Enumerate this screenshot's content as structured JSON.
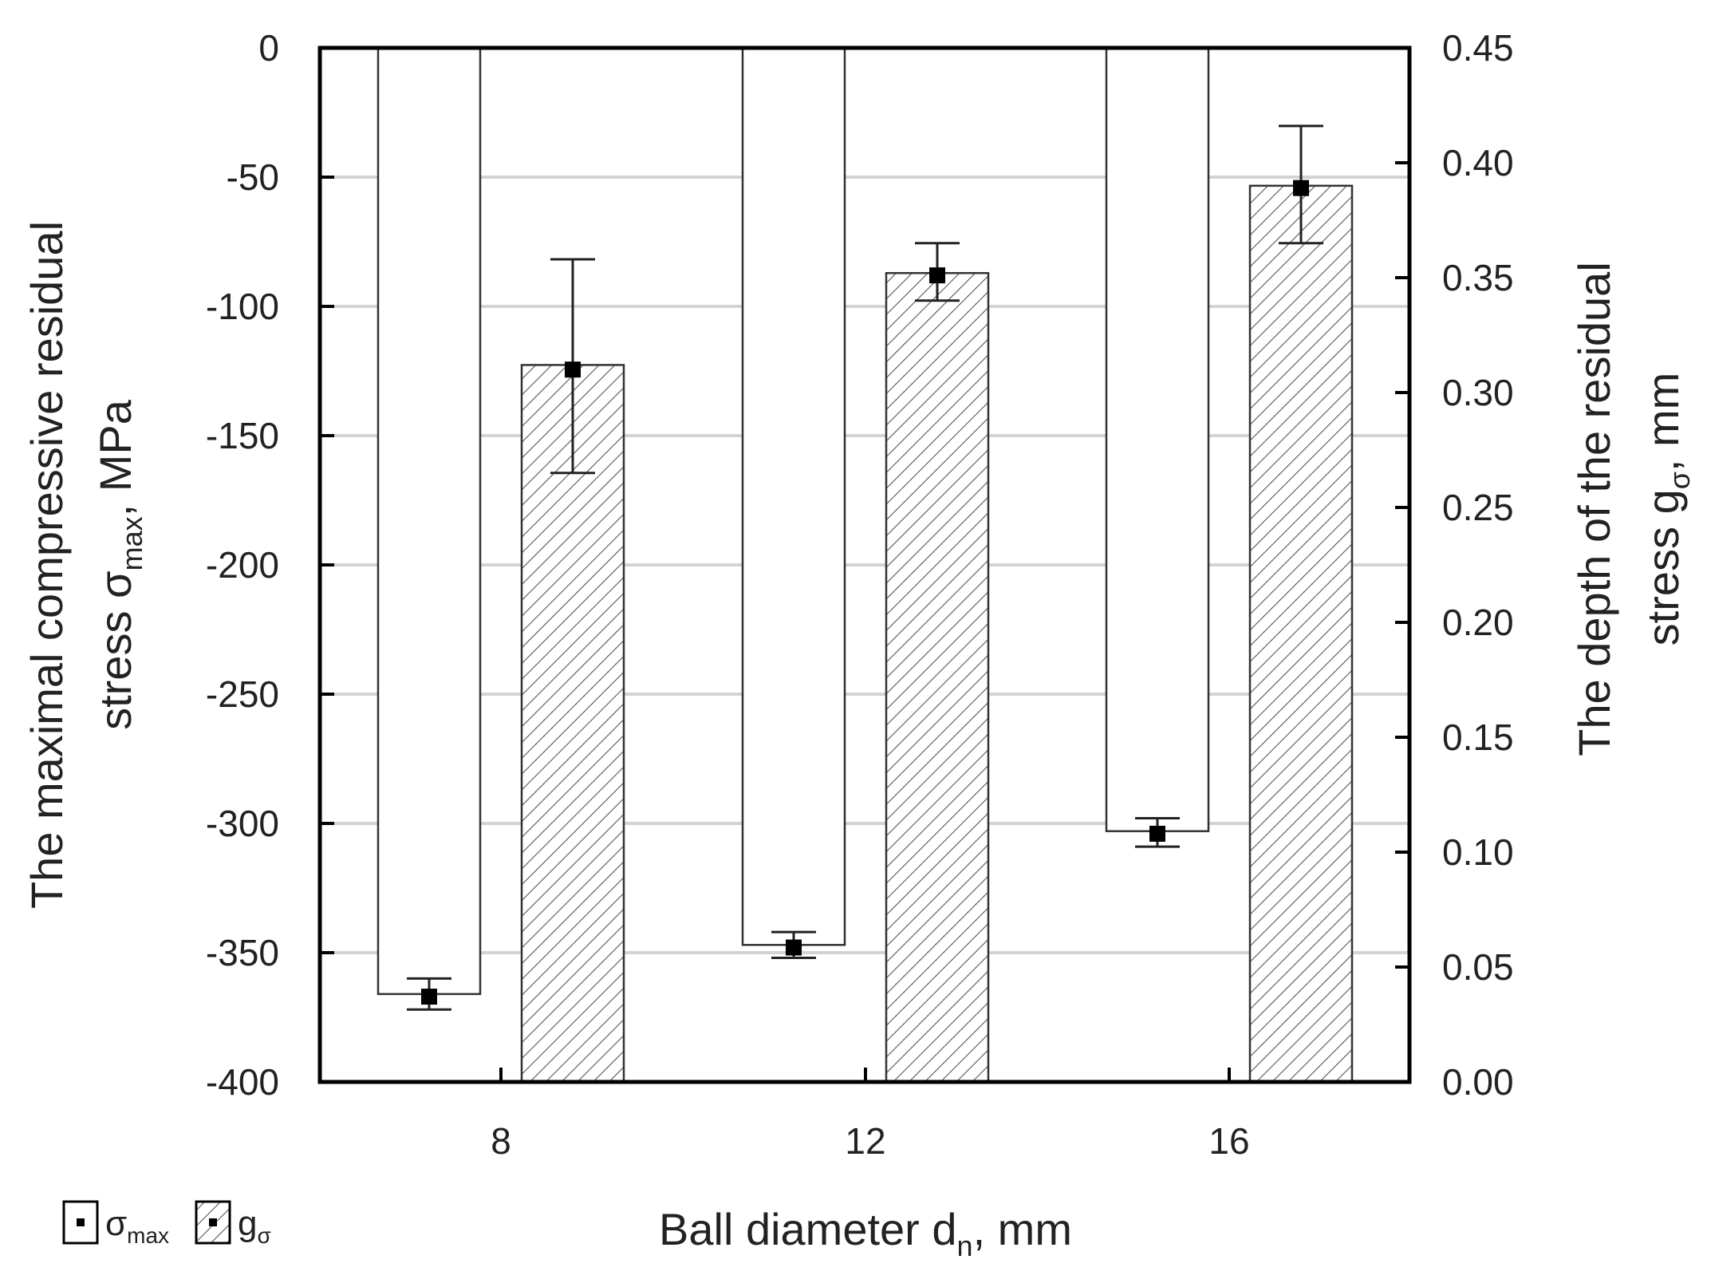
{
  "chart_data": {
    "type": "bar",
    "categories": [
      "8",
      "12",
      "16"
    ],
    "xlabel": {
      "text": "Ball diameter d",
      "sub": "n",
      "suffix": ", mm"
    },
    "left_axis": {
      "label_line1": "The maximal compressive residual",
      "label_line2_pre": "stress σ",
      "label_line2_sub": "max",
      "label_line2_post": ", MPa",
      "ylim": [
        -400,
        0
      ],
      "ticks": [
        0,
        -50,
        -100,
        -150,
        -200,
        -250,
        -300,
        -350,
        -400
      ],
      "tick_labels": [
        "0",
        "-50",
        "-100",
        "-150",
        "-200",
        "-250",
        "-300",
        "-350",
        "-400"
      ]
    },
    "right_axis": {
      "label_line1": "The depth of the residual",
      "label_line2_pre": "stress g",
      "label_line2_sub": "σ",
      "label_line2_post": ", mm",
      "ylim": [
        0,
        0.45
      ],
      "ticks": [
        0,
        0.05,
        0.1,
        0.15,
        0.2,
        0.25,
        0.3,
        0.35,
        0.4,
        0.45
      ],
      "tick_labels": [
        "0.00",
        "0.05",
        "0.10",
        "0.15",
        "0.20",
        "0.25",
        "0.30",
        "0.35",
        "0.40",
        "0.45"
      ]
    },
    "series": [
      {
        "name": "σ",
        "name_sub": "max",
        "axis": "left",
        "fill": "none",
        "values": [
          -366,
          -347,
          -303
        ],
        "points": [
          -367,
          -348,
          -304
        ],
        "err_low": [
          -372,
          -352,
          -309
        ],
        "err_high": [
          -360,
          -342,
          -298
        ]
      },
      {
        "name": "g",
        "name_sub": "σ",
        "axis": "right",
        "fill": "hatched",
        "values": [
          0.312,
          0.352,
          0.39
        ],
        "points": [
          0.31,
          0.351,
          0.389
        ],
        "err_low": [
          0.265,
          0.34,
          0.365
        ],
        "err_high": [
          0.358,
          0.365,
          0.416
        ]
      }
    ],
    "grid": true,
    "legend_position": "bottom-left",
    "colors": {
      "axis": "#000000",
      "grid": "#d3d3d3",
      "bar_edge": "#333333",
      "hatch": "#555555",
      "marker": "#000000"
    }
  }
}
